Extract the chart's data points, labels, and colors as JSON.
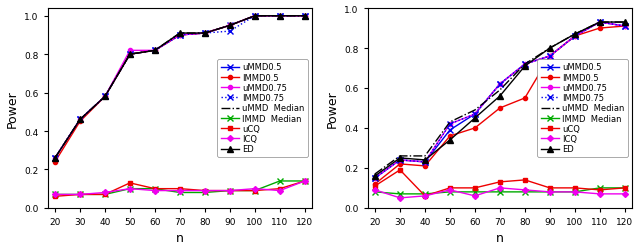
{
  "n": [
    20,
    30,
    40,
    50,
    60,
    70,
    80,
    90,
    100,
    110,
    120
  ],
  "left": {
    "uMMD05": [
      0.26,
      0.46,
      0.58,
      0.8,
      0.82,
      0.9,
      0.91,
      0.95,
      1.0,
      1.0,
      1.0
    ],
    "IMMD05": [
      0.24,
      0.45,
      0.58,
      0.8,
      0.82,
      0.9,
      0.91,
      0.95,
      1.0,
      1.0,
      1.0
    ],
    "uMMD075": [
      0.26,
      0.46,
      0.58,
      0.82,
      0.82,
      0.9,
      0.91,
      0.95,
      1.0,
      1.0,
      1.0
    ],
    "IMMD075": [
      0.26,
      0.46,
      0.58,
      0.8,
      0.82,
      0.9,
      0.91,
      0.92,
      1.0,
      1.0,
      1.0
    ],
    "uMMDMedian": [
      0.26,
      0.46,
      0.58,
      0.8,
      0.82,
      0.91,
      0.91,
      0.95,
      1.0,
      1.0,
      1.0
    ],
    "IMMDMedian": [
      0.07,
      0.07,
      0.07,
      0.1,
      0.1,
      0.08,
      0.08,
      0.09,
      0.09,
      0.14,
      0.14
    ],
    "uCQ": [
      0.06,
      0.07,
      0.07,
      0.13,
      0.1,
      0.1,
      0.09,
      0.09,
      0.09,
      0.1,
      0.14
    ],
    "ICQ": [
      0.07,
      0.07,
      0.08,
      0.1,
      0.09,
      0.09,
      0.09,
      0.09,
      0.1,
      0.09,
      0.14
    ],
    "ED": [
      0.26,
      0.46,
      0.58,
      0.8,
      0.82,
      0.91,
      0.91,
      0.95,
      1.0,
      1.0,
      1.0
    ]
  },
  "right": {
    "uMMD05": [
      0.15,
      0.24,
      0.23,
      0.39,
      0.47,
      0.62,
      0.72,
      0.76,
      0.86,
      0.93,
      0.91
    ],
    "IMMD05": [
      0.12,
      0.22,
      0.21,
      0.36,
      0.4,
      0.5,
      0.55,
      0.76,
      0.86,
      0.9,
      0.91
    ],
    "uMMD075": [
      0.15,
      0.24,
      0.23,
      0.42,
      0.47,
      0.62,
      0.72,
      0.76,
      0.86,
      0.93,
      0.91
    ],
    "IMMD075": [
      0.15,
      0.24,
      0.23,
      0.42,
      0.47,
      0.62,
      0.72,
      0.76,
      0.86,
      0.93,
      0.91
    ],
    "uMMDMedian": [
      0.17,
      0.26,
      0.26,
      0.43,
      0.49,
      0.59,
      0.72,
      0.8,
      0.87,
      0.93,
      0.93
    ],
    "IMMDMedian": [
      0.08,
      0.07,
      0.07,
      0.08,
      0.08,
      0.08,
      0.08,
      0.08,
      0.08,
      0.1,
      0.1
    ],
    "uCQ": [
      0.11,
      0.19,
      0.06,
      0.1,
      0.1,
      0.13,
      0.14,
      0.1,
      0.1,
      0.09,
      0.1
    ],
    "ICQ": [
      0.09,
      0.05,
      0.06,
      0.09,
      0.06,
      0.1,
      0.09,
      0.08,
      0.08,
      0.07,
      0.07
    ],
    "ED": [
      0.16,
      0.25,
      0.24,
      0.34,
      0.45,
      0.56,
      0.71,
      0.8,
      0.87,
      0.93,
      0.93
    ]
  },
  "ylim_left": [
    0,
    1.04
  ],
  "ylim_right": [
    0,
    1.0
  ],
  "yticks_left": [
    0,
    0.2,
    0.4,
    0.6,
    0.8,
    1.0
  ],
  "yticks_right": [
    0,
    0.2,
    0.4,
    0.6,
    0.8,
    1.0
  ],
  "xlabel": "n",
  "ylabel": "Power",
  "xticks": [
    20,
    30,
    40,
    50,
    60,
    70,
    80,
    90,
    100,
    110,
    120
  ],
  "legend_fontsize": 6.0,
  "tick_fontsize": 6.5,
  "label_fontsize": 9
}
